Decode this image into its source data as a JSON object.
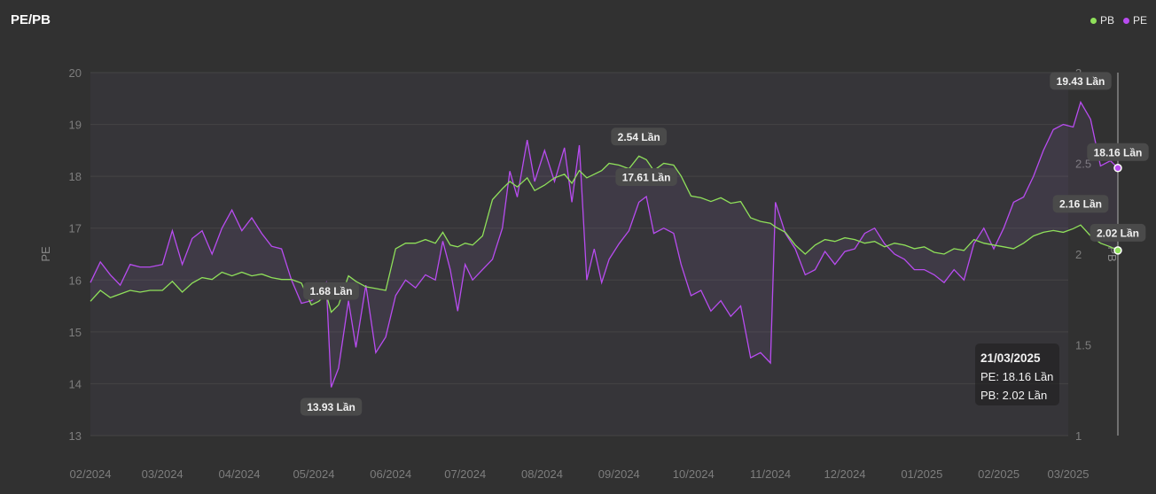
{
  "header": {
    "title": "PE/PB"
  },
  "legend": [
    {
      "name": "PB",
      "color": "#8fe05a"
    },
    {
      "name": "PE",
      "color": "#b84cf0"
    }
  ],
  "tooltip": {
    "date": "21/03/2025",
    "pe": "PE: 18.16 Lần",
    "pb": "PB: 2.02 Lần"
  },
  "chart_data": {
    "type": "line",
    "title": "PE/PB",
    "x_ticks": [
      "02/2024",
      "03/2024",
      "04/2024",
      "05/2024",
      "06/2024",
      "07/2024",
      "08/2024",
      "09/2024",
      "10/2024",
      "11/2024",
      "12/2024",
      "01/2025",
      "02/2025",
      "03/2025"
    ],
    "y_left": {
      "label": "PE",
      "range": [
        13,
        20
      ],
      "ticks": [
        "13",
        "14",
        "15",
        "16",
        "17",
        "18",
        "19",
        "20"
      ]
    },
    "y_right": {
      "label": "PB",
      "range": [
        1,
        3
      ],
      "ticks": [
        "1",
        "1.5",
        "2",
        "2.5",
        "3"
      ]
    },
    "grid": true,
    "legend_position": "top-right",
    "series": [
      {
        "name": "PE",
        "axis": "left",
        "color": "#b84cf0",
        "points": [
          [
            "2024-02-01",
            15.95
          ],
          [
            "2024-02-05",
            16.35
          ],
          [
            "2024-02-09",
            16.1
          ],
          [
            "2024-02-13",
            15.9
          ],
          [
            "2024-02-17",
            16.3
          ],
          [
            "2024-02-21",
            16.25
          ],
          [
            "2024-02-25",
            16.25
          ],
          [
            "2024-03-01",
            16.3
          ],
          [
            "2024-03-05",
            16.95
          ],
          [
            "2024-03-09",
            16.3
          ],
          [
            "2024-03-13",
            16.8
          ],
          [
            "2024-03-17",
            16.95
          ],
          [
            "2024-03-21",
            16.5
          ],
          [
            "2024-03-25",
            17.0
          ],
          [
            "2024-03-29",
            17.35
          ],
          [
            "2024-04-02",
            16.95
          ],
          [
            "2024-04-06",
            17.2
          ],
          [
            "2024-04-10",
            16.9
          ],
          [
            "2024-04-14",
            16.65
          ],
          [
            "2024-04-18",
            16.6
          ],
          [
            "2024-04-22",
            16.0
          ],
          [
            "2024-04-26",
            15.55
          ],
          [
            "2024-04-30",
            15.6
          ],
          [
            "2024-05-03",
            15.7
          ],
          [
            "2024-05-06",
            15.95
          ],
          [
            "2024-05-08",
            13.93
          ],
          [
            "2024-05-11",
            14.3
          ],
          [
            "2024-05-15",
            15.6
          ],
          [
            "2024-05-18",
            14.7
          ],
          [
            "2024-05-22",
            15.9
          ],
          [
            "2024-05-26",
            14.6
          ],
          [
            "2024-05-30",
            14.9
          ],
          [
            "2024-06-03",
            15.7
          ],
          [
            "2024-06-07",
            16.0
          ],
          [
            "2024-06-11",
            15.85
          ],
          [
            "2024-06-15",
            16.1
          ],
          [
            "2024-06-19",
            16.0
          ],
          [
            "2024-06-22",
            16.75
          ],
          [
            "2024-06-25",
            16.2
          ],
          [
            "2024-06-28",
            15.4
          ],
          [
            "2024-07-01",
            16.3
          ],
          [
            "2024-07-04",
            16.0
          ],
          [
            "2024-07-08",
            16.2
          ],
          [
            "2024-07-12",
            16.4
          ],
          [
            "2024-07-16",
            17.0
          ],
          [
            "2024-07-19",
            18.1
          ],
          [
            "2024-07-22",
            17.6
          ],
          [
            "2024-07-26",
            18.7
          ],
          [
            "2024-07-29",
            17.9
          ],
          [
            "2024-08-02",
            18.5
          ],
          [
            "2024-08-06",
            17.9
          ],
          [
            "2024-08-10",
            18.55
          ],
          [
            "2024-08-13",
            17.5
          ],
          [
            "2024-08-16",
            18.6
          ],
          [
            "2024-08-19",
            16.0
          ],
          [
            "2024-08-22",
            16.6
          ],
          [
            "2024-08-25",
            15.95
          ],
          [
            "2024-08-28",
            16.4
          ],
          [
            "2024-09-01",
            16.7
          ],
          [
            "2024-09-05",
            16.95
          ],
          [
            "2024-09-09",
            17.5
          ],
          [
            "2024-09-12",
            17.61
          ],
          [
            "2024-09-15",
            16.9
          ],
          [
            "2024-09-19",
            17.0
          ],
          [
            "2024-09-23",
            16.9
          ],
          [
            "2024-09-26",
            16.3
          ],
          [
            "2024-09-30",
            15.7
          ],
          [
            "2024-10-04",
            15.8
          ],
          [
            "2024-10-08",
            15.4
          ],
          [
            "2024-10-12",
            15.6
          ],
          [
            "2024-10-16",
            15.3
          ],
          [
            "2024-10-20",
            15.5
          ],
          [
            "2024-10-24",
            14.5
          ],
          [
            "2024-10-28",
            14.6
          ],
          [
            "2024-11-01",
            14.4
          ],
          [
            "2024-11-03",
            17.5
          ],
          [
            "2024-11-07",
            16.9
          ],
          [
            "2024-11-11",
            16.6
          ],
          [
            "2024-11-15",
            16.1
          ],
          [
            "2024-11-19",
            16.2
          ],
          [
            "2024-11-23",
            16.55
          ],
          [
            "2024-11-27",
            16.3
          ],
          [
            "2024-12-01",
            16.55
          ],
          [
            "2024-12-05",
            16.6
          ],
          [
            "2024-12-09",
            16.9
          ],
          [
            "2024-12-13",
            17.0
          ],
          [
            "2024-12-17",
            16.7
          ],
          [
            "2024-12-21",
            16.5
          ],
          [
            "2024-12-25",
            16.4
          ],
          [
            "2024-12-29",
            16.2
          ],
          [
            "2025-01-02",
            16.2
          ],
          [
            "2025-01-06",
            16.1
          ],
          [
            "2025-01-10",
            15.95
          ],
          [
            "2025-01-14",
            16.2
          ],
          [
            "2025-01-18",
            16.0
          ],
          [
            "2025-01-22",
            16.7
          ],
          [
            "2025-01-26",
            17.0
          ],
          [
            "2025-01-30",
            16.6
          ],
          [
            "2025-02-03",
            17.0
          ],
          [
            "2025-02-07",
            17.5
          ],
          [
            "2025-02-11",
            17.6
          ],
          [
            "2025-02-15",
            18.0
          ],
          [
            "2025-02-19",
            18.5
          ],
          [
            "2025-02-23",
            18.9
          ],
          [
            "2025-02-27",
            19.0
          ],
          [
            "2025-03-03",
            18.95
          ],
          [
            "2025-03-06",
            19.43
          ],
          [
            "2025-03-10",
            19.1
          ],
          [
            "2025-03-14",
            18.2
          ],
          [
            "2025-03-18",
            18.3
          ],
          [
            "2025-03-21",
            18.16
          ]
        ],
        "labels": [
          {
            "date": "2024-05-08",
            "value": 13.93,
            "text": "13.93 Lần"
          },
          {
            "date": "2024-09-12",
            "value": 17.61,
            "text": "17.61 Lần"
          },
          {
            "date": "2025-03-06",
            "value": 19.43,
            "text": "19.43 Lần"
          },
          {
            "date": "2025-03-21",
            "value": 18.16,
            "text": "18.16 Lần"
          }
        ]
      },
      {
        "name": "PB",
        "axis": "right",
        "color": "#8fe05a",
        "points": [
          [
            "2024-02-01",
            1.74
          ],
          [
            "2024-02-05",
            1.8
          ],
          [
            "2024-02-09",
            1.76
          ],
          [
            "2024-02-13",
            1.78
          ],
          [
            "2024-02-17",
            1.8
          ],
          [
            "2024-02-21",
            1.79
          ],
          [
            "2024-02-25",
            1.8
          ],
          [
            "2024-03-01",
            1.8
          ],
          [
            "2024-03-05",
            1.85
          ],
          [
            "2024-03-09",
            1.79
          ],
          [
            "2024-03-13",
            1.84
          ],
          [
            "2024-03-17",
            1.87
          ],
          [
            "2024-03-21",
            1.86
          ],
          [
            "2024-03-25",
            1.9
          ],
          [
            "2024-03-29",
            1.88
          ],
          [
            "2024-04-02",
            1.9
          ],
          [
            "2024-04-06",
            1.88
          ],
          [
            "2024-04-10",
            1.89
          ],
          [
            "2024-04-14",
            1.87
          ],
          [
            "2024-04-18",
            1.86
          ],
          [
            "2024-04-22",
            1.86
          ],
          [
            "2024-04-26",
            1.84
          ],
          [
            "2024-04-30",
            1.72
          ],
          [
            "2024-05-03",
            1.74
          ],
          [
            "2024-05-06",
            1.78
          ],
          [
            "2024-05-08",
            1.68
          ],
          [
            "2024-05-11",
            1.72
          ],
          [
            "2024-05-15",
            1.88
          ],
          [
            "2024-05-18",
            1.85
          ],
          [
            "2024-05-22",
            1.82
          ],
          [
            "2024-05-26",
            1.81
          ],
          [
            "2024-05-30",
            1.8
          ],
          [
            "2024-06-03",
            2.03
          ],
          [
            "2024-06-07",
            2.06
          ],
          [
            "2024-06-11",
            2.06
          ],
          [
            "2024-06-15",
            2.08
          ],
          [
            "2024-06-19",
            2.06
          ],
          [
            "2024-06-22",
            2.12
          ],
          [
            "2024-06-25",
            2.05
          ],
          [
            "2024-06-28",
            2.04
          ],
          [
            "2024-07-01",
            2.06
          ],
          [
            "2024-07-04",
            2.05
          ],
          [
            "2024-07-08",
            2.1
          ],
          [
            "2024-07-12",
            2.3
          ],
          [
            "2024-07-16",
            2.36
          ],
          [
            "2024-07-19",
            2.4
          ],
          [
            "2024-07-22",
            2.37
          ],
          [
            "2024-07-26",
            2.42
          ],
          [
            "2024-07-29",
            2.35
          ],
          [
            "2024-08-02",
            2.38
          ],
          [
            "2024-08-06",
            2.42
          ],
          [
            "2024-08-10",
            2.44
          ],
          [
            "2024-08-13",
            2.39
          ],
          [
            "2024-08-16",
            2.46
          ],
          [
            "2024-08-19",
            2.42
          ],
          [
            "2024-08-22",
            2.44
          ],
          [
            "2024-08-25",
            2.46
          ],
          [
            "2024-08-28",
            2.5
          ],
          [
            "2024-09-01",
            2.49
          ],
          [
            "2024-09-05",
            2.47
          ],
          [
            "2024-09-09",
            2.54
          ],
          [
            "2024-09-12",
            2.52
          ],
          [
            "2024-09-15",
            2.46
          ],
          [
            "2024-09-19",
            2.5
          ],
          [
            "2024-09-23",
            2.49
          ],
          [
            "2024-09-26",
            2.43
          ],
          [
            "2024-09-30",
            2.32
          ],
          [
            "2024-10-04",
            2.31
          ],
          [
            "2024-10-08",
            2.29
          ],
          [
            "2024-10-12",
            2.31
          ],
          [
            "2024-10-16",
            2.28
          ],
          [
            "2024-10-20",
            2.29
          ],
          [
            "2024-10-24",
            2.2
          ],
          [
            "2024-10-28",
            2.18
          ],
          [
            "2024-11-01",
            2.17
          ],
          [
            "2024-11-03",
            2.15
          ],
          [
            "2024-11-07",
            2.12
          ],
          [
            "2024-11-11",
            2.05
          ],
          [
            "2024-11-15",
            2.0
          ],
          [
            "2024-11-19",
            2.05
          ],
          [
            "2024-11-23",
            2.08
          ],
          [
            "2024-11-27",
            2.07
          ],
          [
            "2024-12-01",
            2.09
          ],
          [
            "2024-12-05",
            2.08
          ],
          [
            "2024-12-09",
            2.06
          ],
          [
            "2024-12-13",
            2.07
          ],
          [
            "2024-12-17",
            2.04
          ],
          [
            "2024-12-21",
            2.06
          ],
          [
            "2024-12-25",
            2.05
          ],
          [
            "2024-12-29",
            2.03
          ],
          [
            "2025-01-02",
            2.04
          ],
          [
            "2025-01-06",
            2.01
          ],
          [
            "2025-01-10",
            2.0
          ],
          [
            "2025-01-14",
            2.03
          ],
          [
            "2025-01-18",
            2.02
          ],
          [
            "2025-01-22",
            2.08
          ],
          [
            "2025-01-26",
            2.06
          ],
          [
            "2025-01-30",
            2.05
          ],
          [
            "2025-02-03",
            2.04
          ],
          [
            "2025-02-07",
            2.03
          ],
          [
            "2025-02-11",
            2.06
          ],
          [
            "2025-02-15",
            2.1
          ],
          [
            "2025-02-19",
            2.12
          ],
          [
            "2025-02-23",
            2.13
          ],
          [
            "2025-02-27",
            2.12
          ],
          [
            "2025-03-03",
            2.14
          ],
          [
            "2025-03-06",
            2.16
          ],
          [
            "2025-03-10",
            2.1
          ],
          [
            "2025-03-14",
            2.06
          ],
          [
            "2025-03-18",
            2.04
          ],
          [
            "2025-03-21",
            2.02
          ]
        ],
        "labels": [
          {
            "date": "2024-05-08",
            "value": 1.68,
            "text": "1.68 Lần"
          },
          {
            "date": "2024-09-09",
            "value": 2.54,
            "text": "2.54 Lần"
          },
          {
            "date": "2025-03-06",
            "value": 2.16,
            "text": "2.16 Lần"
          },
          {
            "date": "2025-03-21",
            "value": 2.02,
            "text": "2.02 Lần"
          }
        ]
      }
    ]
  }
}
